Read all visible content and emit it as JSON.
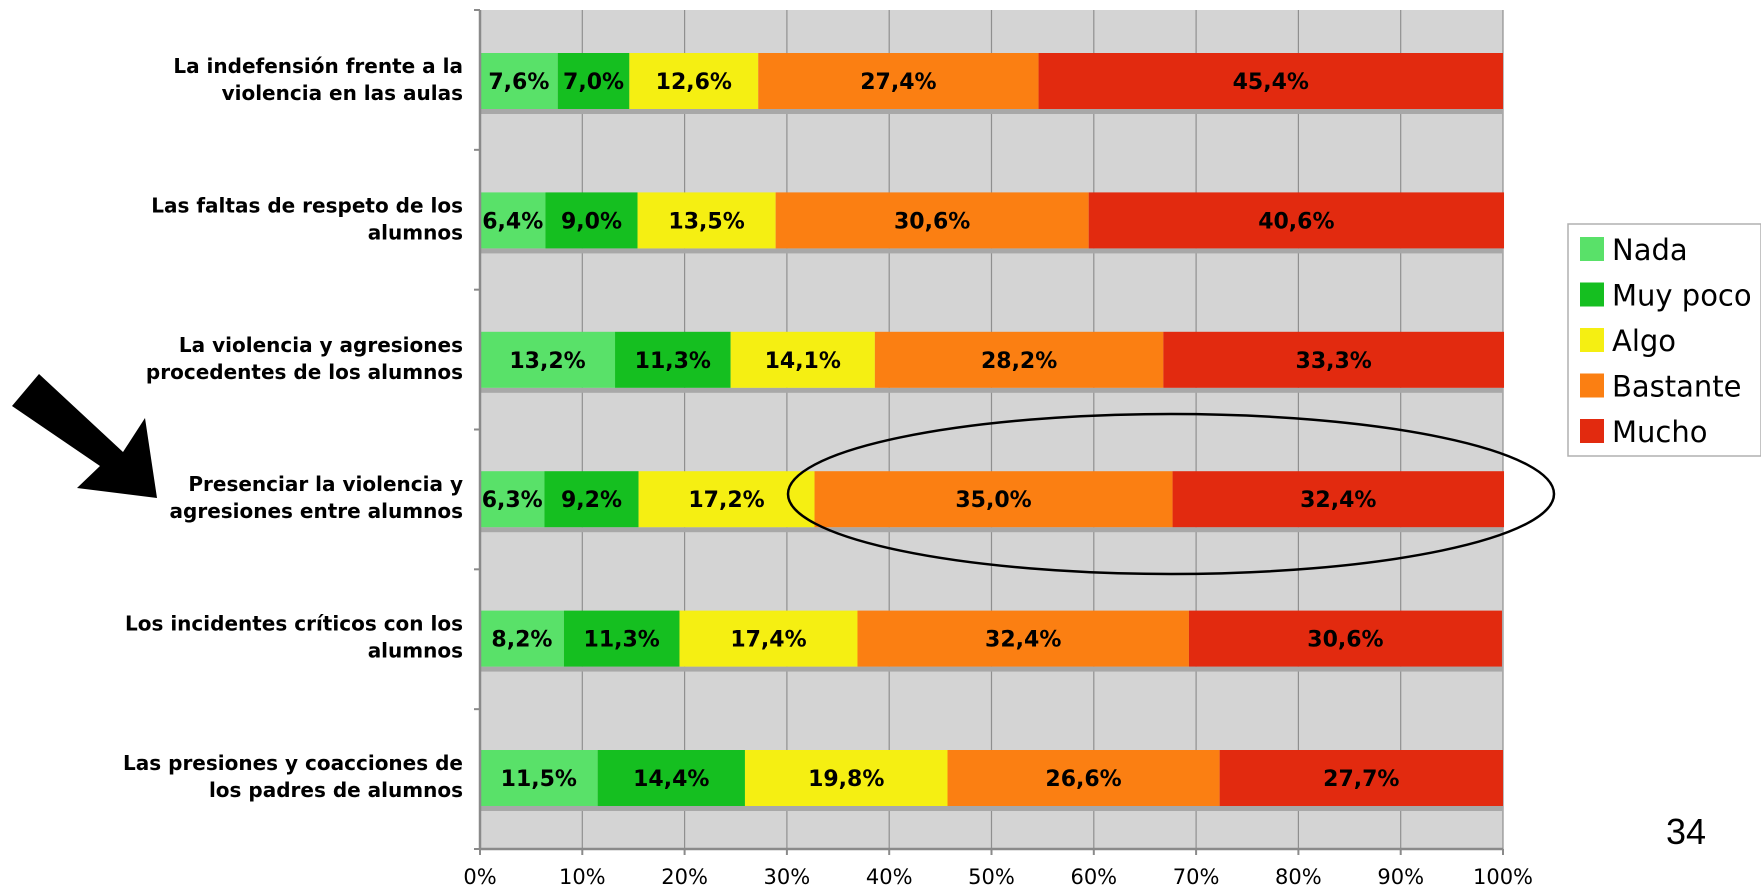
{
  "page_number": "34",
  "chart_data": {
    "type": "bar",
    "orientation": "horizontal",
    "stacked": "percent",
    "categories": [
      [
        "La indefensión frente a la",
        "violencia en las aulas"
      ],
      [
        "Las faltas de respeto de los",
        "alumnos"
      ],
      [
        "La violencia y agresiones",
        "procedentes de los alumnos"
      ],
      [
        "Presenciar la violencia y",
        "agresiones entre alumnos"
      ],
      [
        "Los incidentes críticos con los",
        "alumnos"
      ],
      [
        "Las presiones y coacciones de",
        "los padres de alumnos"
      ]
    ],
    "series": [
      {
        "name": "Nada",
        "color": "#59e169",
        "values": [
          7.6,
          6.4,
          13.2,
          6.3,
          8.2,
          11.5
        ],
        "labels": [
          "7,6%",
          "6,4%",
          "13,2%",
          "6,3%",
          "8,2%",
          "11,5%"
        ]
      },
      {
        "name": "Muy poco",
        "color": "#15bf20",
        "values": [
          7.0,
          9.0,
          11.3,
          9.2,
          11.3,
          14.4
        ],
        "labels": [
          "7,0%",
          "9,0%",
          "11,3%",
          "9,2%",
          "11,3%",
          "14,4%"
        ]
      },
      {
        "name": "Algo",
        "color": "#f5ef12",
        "values": [
          12.6,
          13.5,
          14.1,
          17.2,
          17.4,
          19.8
        ],
        "labels": [
          "12,6%",
          "13,5%",
          "14,1%",
          "17,2%",
          "17,4%",
          "19,8%"
        ]
      },
      {
        "name": "Bastante",
        "color": "#fb7f12",
        "values": [
          27.4,
          30.6,
          28.2,
          35.0,
          32.4,
          26.6
        ],
        "labels": [
          "27,4%",
          "30,6%",
          "28,2%",
          "35,0%",
          "32,4%",
          "26,6%"
        ]
      },
      {
        "name": "Mucho",
        "color": "#e22a0f",
        "values": [
          45.4,
          40.6,
          33.3,
          32.4,
          30.6,
          27.7
        ],
        "labels": [
          "45,4%",
          "40,6%",
          "33,3%",
          "32,4%",
          "30,6%",
          "27,7%"
        ]
      }
    ],
    "xlim": [
      0,
      100
    ],
    "xticks": [
      "0%",
      "10%",
      "20%",
      "30%",
      "40%",
      "50%",
      "60%",
      "70%",
      "80%",
      "90%",
      "100%"
    ],
    "grid": true,
    "legend": "right",
    "annotations": {
      "arrow": "points to category 4",
      "ellipse": "encircles Bastante and Mucho of category 4"
    }
  }
}
